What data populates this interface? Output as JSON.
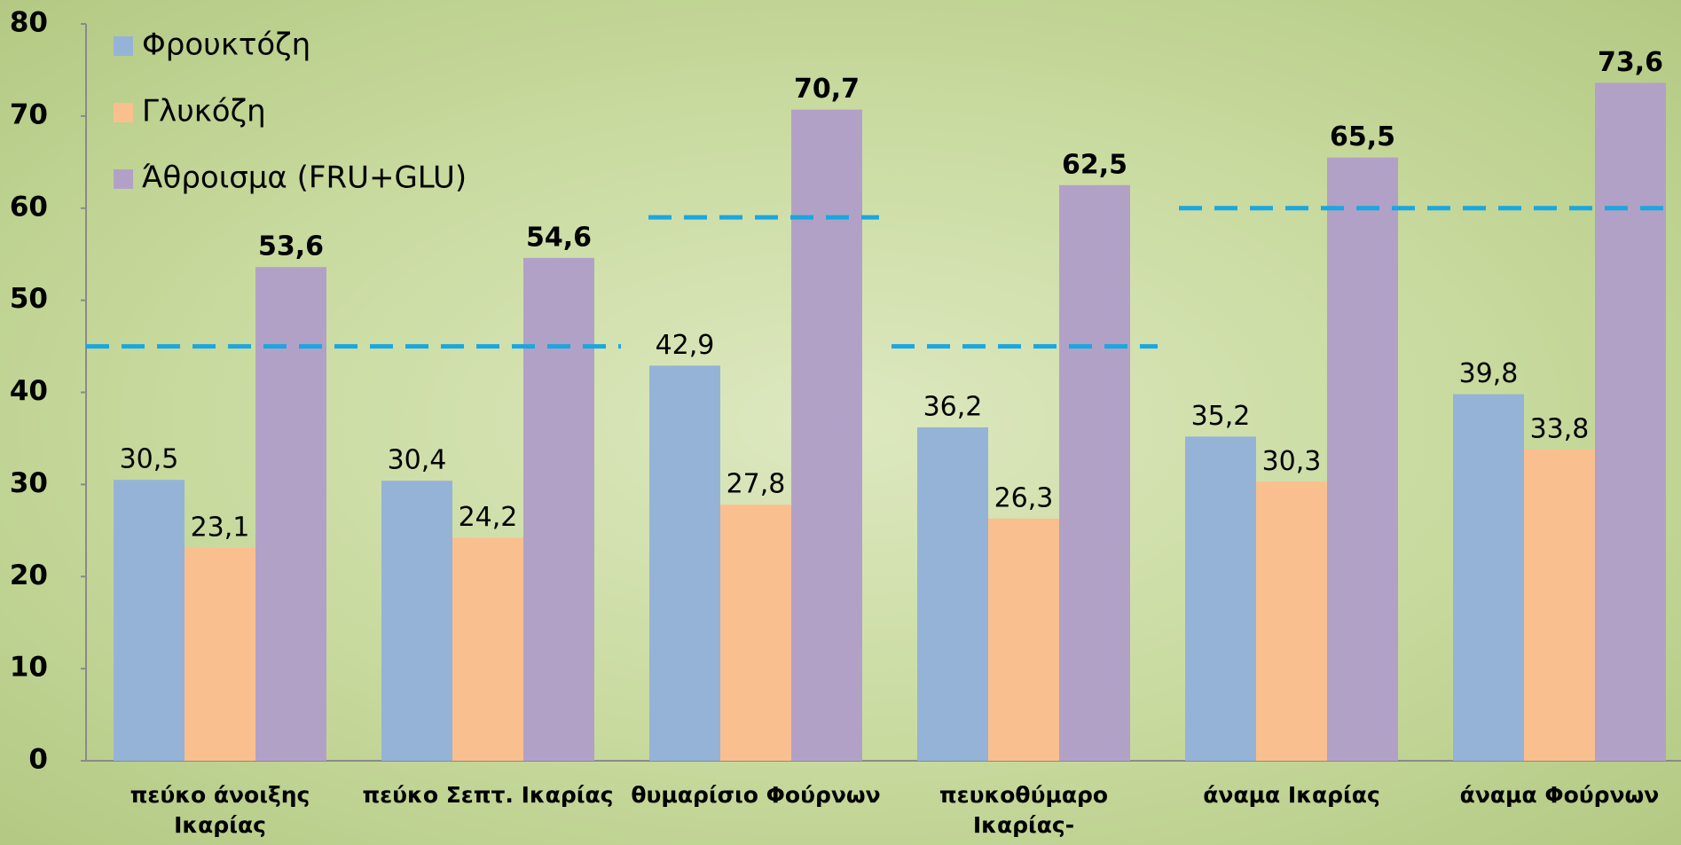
{
  "chart_data": {
    "type": "bar",
    "categories": [
      "πεύκο άνοιξης Ικαρίας",
      "πεύκο Σεπτ. Ικαρίας",
      "θυμαρίσιο Φούρνων",
      "πευκοθύμαρο Ικαρίας-Φούρνων",
      "άναμα Ικαρίας",
      "άναμα Φούρνων"
    ],
    "series": [
      {
        "name": "Φρουκτόζη",
        "color": "#95b3d7",
        "values": [
          30.5,
          30.4,
          42.9,
          36.2,
          35.2,
          39.8
        ],
        "value_labels": [
          "30,5",
          "30,4",
          "42,9",
          "36,2",
          "35,2",
          "39,8"
        ]
      },
      {
        "name": "Γλυκόζη",
        "color": "#fabf8f",
        "values": [
          23.1,
          24.2,
          27.8,
          26.3,
          30.3,
          33.8
        ],
        "value_labels": [
          "23,1",
          "24,2",
          "27,8",
          "26,3",
          "30,3",
          "33,8"
        ]
      },
      {
        "name": "Άθροισμα (FRU+GLU)",
        "color": "#b2a1c7",
        "values": [
          53.6,
          54.6,
          70.7,
          62.5,
          65.5,
          73.6
        ],
        "value_labels": [
          "53,6",
          "54,6",
          "70,7",
          "62,5",
          "65,5",
          "73,6"
        ]
      }
    ],
    "reference_lines": [
      45,
      59,
      45,
      60
    ],
    "reference_color": "#1aa7e0",
    "ylim": [
      0,
      80
    ],
    "yticks": [
      0,
      10,
      20,
      30,
      40,
      50,
      60,
      70,
      80
    ],
    "grid": false,
    "legend": "upper left"
  }
}
